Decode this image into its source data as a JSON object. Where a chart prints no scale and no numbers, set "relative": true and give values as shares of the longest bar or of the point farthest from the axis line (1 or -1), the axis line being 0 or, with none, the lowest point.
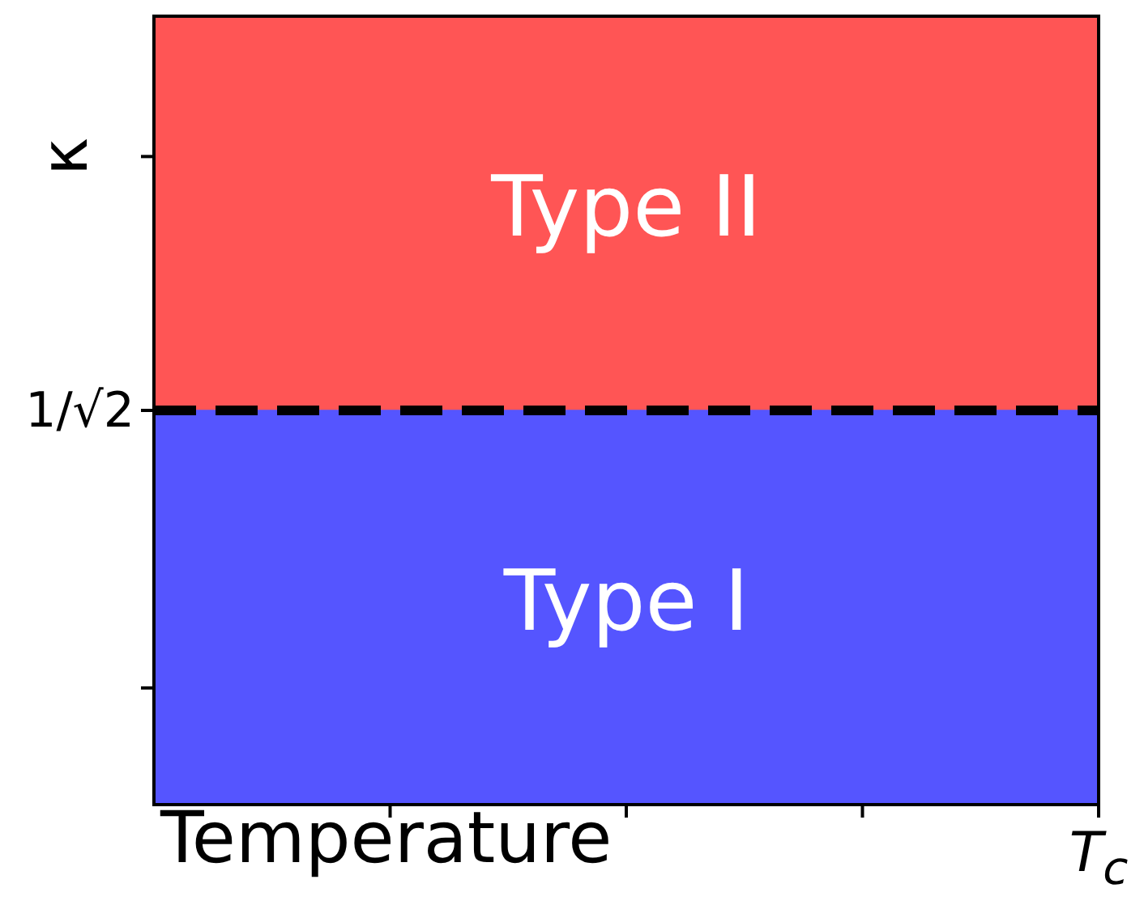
{
  "chart_data": {
    "type": "bar",
    "stacked": true,
    "relative": true,
    "xlabel": "Temperature",
    "ylabel": "κ",
    "categories": [
      null
    ],
    "series": [
      {
        "name": "Type I",
        "color": "#5555ff",
        "values": [
          0.5
        ]
      },
      {
        "name": "Type II",
        "color": "#ff5555",
        "values": [
          0.5
        ]
      }
    ],
    "ref_lines": [
      {
        "axis": "y",
        "value": 0.5,
        "label": "1/√2",
        "color": "#000000",
        "line_style": "dashed"
      }
    ],
    "annotations": [
      "T$_{c}$"
    ],
    "legend": false
  }
}
